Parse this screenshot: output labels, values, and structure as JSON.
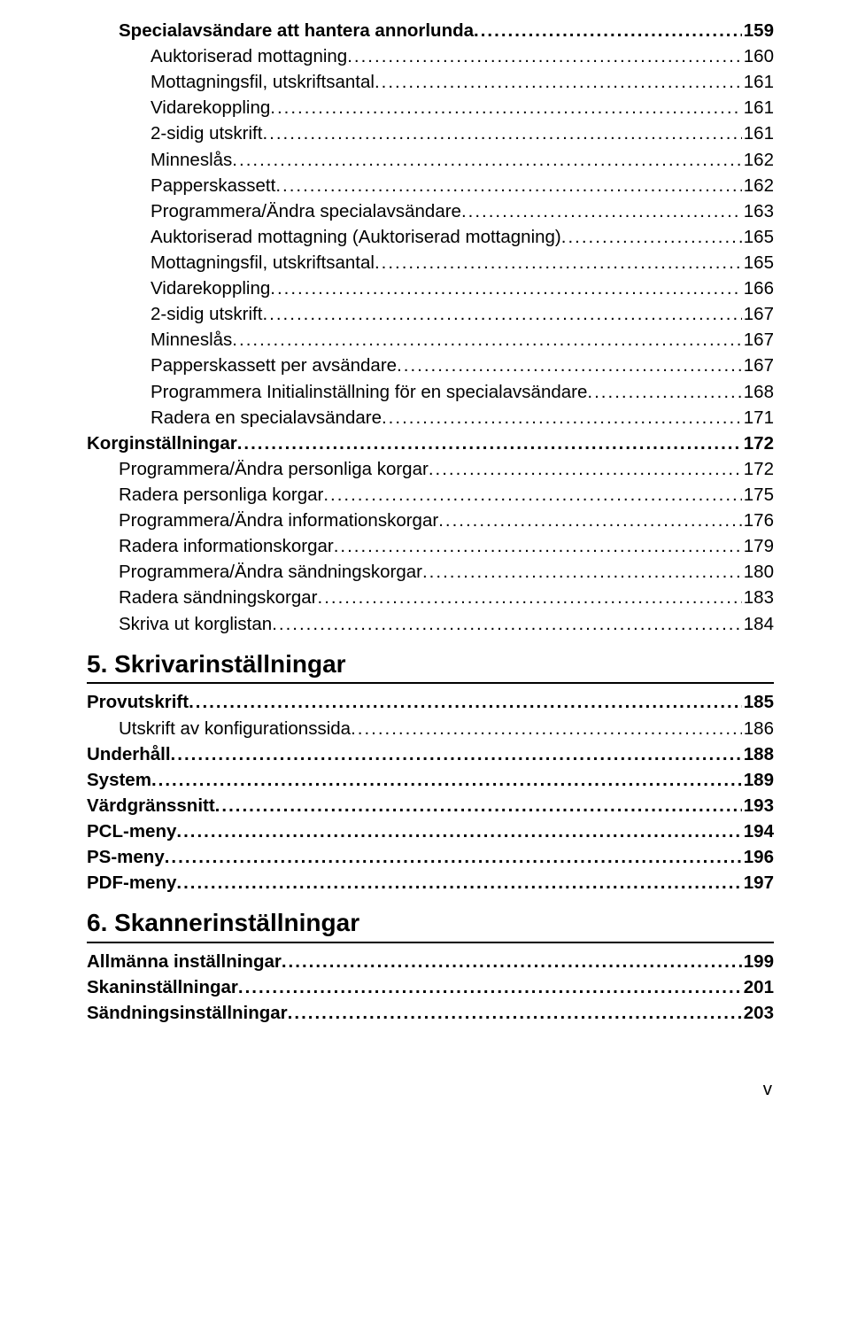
{
  "toc": {
    "block1": [
      {
        "label": "Specialavsändare att hantera annorlunda",
        "page": "159",
        "indent": 1,
        "bold": true
      },
      {
        "label": "Auktoriserad mottagning",
        "page": "160",
        "indent": 2,
        "bold": false
      },
      {
        "label": "Mottagningsfil, utskriftsantal",
        "page": "161",
        "indent": 2,
        "bold": false
      },
      {
        "label": "Vidarekoppling",
        "page": "161",
        "indent": 2,
        "bold": false
      },
      {
        "label": "2-sidig utskrift",
        "page": "161",
        "indent": 2,
        "bold": false
      },
      {
        "label": "Minneslås",
        "page": "162",
        "indent": 2,
        "bold": false
      },
      {
        "label": "Papperskassett",
        "page": "162",
        "indent": 2,
        "bold": false
      },
      {
        "label": "Programmera/Ändra specialavsändare",
        "page": "163",
        "indent": 2,
        "bold": false
      },
      {
        "label": "Auktoriserad mottagning (Auktoriserad mottagning)",
        "page": "165",
        "indent": 2,
        "bold": false
      },
      {
        "label": "Mottagningsfil, utskriftsantal",
        "page": "165",
        "indent": 2,
        "bold": false
      },
      {
        "label": "Vidarekoppling",
        "page": "166",
        "indent": 2,
        "bold": false
      },
      {
        "label": "2-sidig utskrift",
        "page": "167",
        "indent": 2,
        "bold": false
      },
      {
        "label": "Minneslås",
        "page": "167",
        "indent": 2,
        "bold": false
      },
      {
        "label": "Papperskassett per avsändare",
        "page": "167",
        "indent": 2,
        "bold": false
      },
      {
        "label": "Programmera Initialinställning för en specialavsändare",
        "page": "168",
        "indent": 2,
        "bold": false
      },
      {
        "label": "Radera en specialavsändare",
        "page": "171",
        "indent": 2,
        "bold": false
      },
      {
        "label": "Korginställningar",
        "page": "172",
        "indent": 0,
        "bold": true
      },
      {
        "label": "Programmera/Ändra personliga korgar",
        "page": "172",
        "indent": 1,
        "bold": false
      },
      {
        "label": "Radera personliga korgar",
        "page": "175",
        "indent": 1,
        "bold": false
      },
      {
        "label": "Programmera/Ändra informationskorgar",
        "page": "176",
        "indent": 1,
        "bold": false
      },
      {
        "label": "Radera informationskorgar",
        "page": "179",
        "indent": 1,
        "bold": false
      },
      {
        "label": "Programmera/Ändra sändningskorgar",
        "page": "180",
        "indent": 1,
        "bold": false
      },
      {
        "label": "Radera sändningskorgar",
        "page": "183",
        "indent": 1,
        "bold": false
      },
      {
        "label": "Skriva ut korglistan",
        "page": "184",
        "indent": 1,
        "bold": false
      }
    ],
    "section5": {
      "title": "5. Skrivarinställningar"
    },
    "block2": [
      {
        "label": "Provutskrift",
        "page": "185",
        "indent": 0,
        "bold": true
      },
      {
        "label": "Utskrift av konfigurationssida",
        "page": "186",
        "indent": 1,
        "bold": false
      },
      {
        "label": "Underhåll",
        "page": "188",
        "indent": 0,
        "bold": true
      },
      {
        "label": "System",
        "page": "189",
        "indent": 0,
        "bold": true
      },
      {
        "label": "Värdgränssnitt",
        "page": "193",
        "indent": 0,
        "bold": true
      },
      {
        "label": "PCL-meny",
        "page": "194",
        "indent": 0,
        "bold": true
      },
      {
        "label": "PS-meny",
        "page": "196",
        "indent": 0,
        "bold": true
      },
      {
        "label": "PDF-meny",
        "page": "197",
        "indent": 0,
        "bold": true
      }
    ],
    "section6": {
      "title": "6. Skannerinställningar"
    },
    "block3": [
      {
        "label": "Allmänna inställningar",
        "page": "199",
        "indent": 0,
        "bold": true
      },
      {
        "label": "Skaninställningar",
        "page": "201",
        "indent": 0,
        "bold": true
      },
      {
        "label": "Sändningsinställningar",
        "page": "203",
        "indent": 0,
        "bold": true
      }
    ]
  },
  "footer": {
    "page_roman": "v"
  }
}
